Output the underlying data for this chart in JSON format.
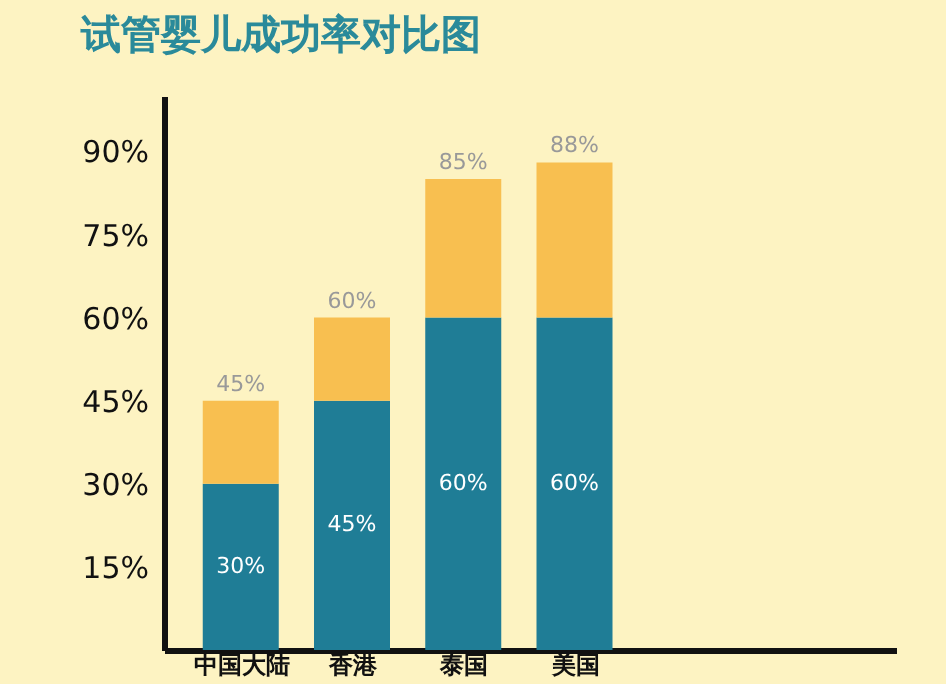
{
  "chart_data": {
    "type": "bar",
    "title": "试管婴儿成功率对比图",
    "categories": [
      "中国大陆",
      "香港",
      "泰国",
      "美国"
    ],
    "stacked": true,
    "series": [
      {
        "color": "#1f7d96",
        "values": [
          30,
          45,
          60,
          60
        ],
        "value_labels": [
          "30%",
          "45%",
          "60%",
          "60%"
        ]
      },
      {
        "color": "#f8bf50",
        "values": [
          15,
          15,
          25,
          28
        ]
      }
    ],
    "totals": [
      "45%",
      "60%",
      "85%",
      "88%"
    ],
    "ylim": [
      0,
      100
    ],
    "yticks": [
      {
        "value": 15,
        "label": "15%"
      },
      {
        "value": 30,
        "label": "30%"
      },
      {
        "value": 45,
        "label": "45%"
      },
      {
        "value": 60,
        "label": "60%"
      },
      {
        "value": 75,
        "label": "75%"
      },
      {
        "value": 90,
        "label": "90%"
      }
    ],
    "grid": false
  }
}
